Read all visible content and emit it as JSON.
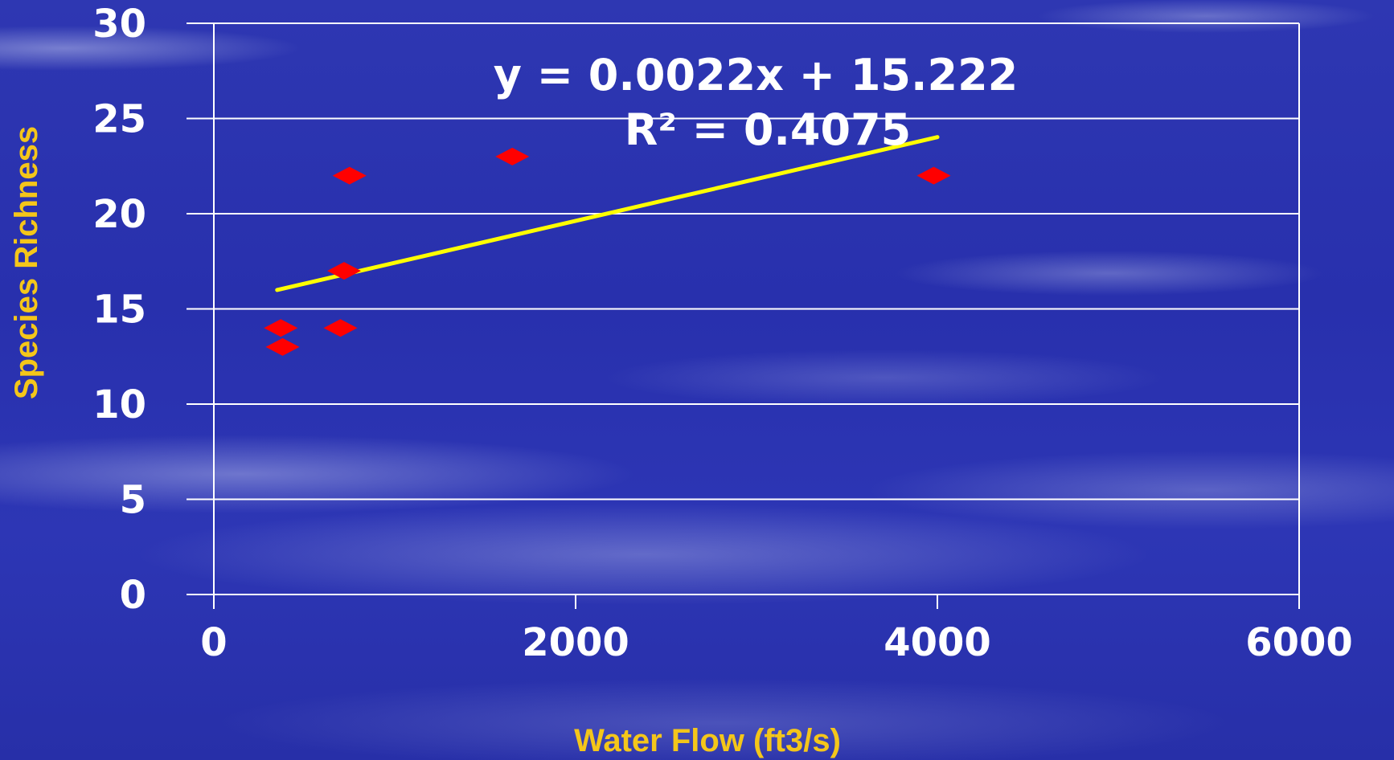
{
  "chart_data": {
    "type": "scatter",
    "xlabel": "Water Flow (ft3/s)",
    "ylabel": "Species Richness",
    "xlim": [
      0,
      6000
    ],
    "ylim": [
      0,
      30
    ],
    "x_ticks": [
      "0",
      "2000",
      "4000",
      "6000"
    ],
    "y_ticks": [
      "0",
      "5",
      "10",
      "15",
      "20",
      "25",
      "30"
    ],
    "grid": "horizontal",
    "series": [
      {
        "points": [
          {
            "x": 370,
            "y": 14
          },
          {
            "x": 380,
            "y": 13
          },
          {
            "x": 700,
            "y": 14
          },
          {
            "x": 720,
            "y": 17
          },
          {
            "x": 750,
            "y": 22
          },
          {
            "x": 1650,
            "y": 23
          },
          {
            "x": 3980,
            "y": 22
          }
        ],
        "color": "#ff0000",
        "marker": "diamond"
      }
    ],
    "trendline": {
      "type": "linear",
      "slope": 0.0022,
      "intercept": 15.222,
      "x_range": [
        350,
        4000
      ],
      "color": "#ffff00",
      "equation": "y = 0.0022x + 15.222",
      "r2_label": "R² = 0.4075"
    }
  }
}
